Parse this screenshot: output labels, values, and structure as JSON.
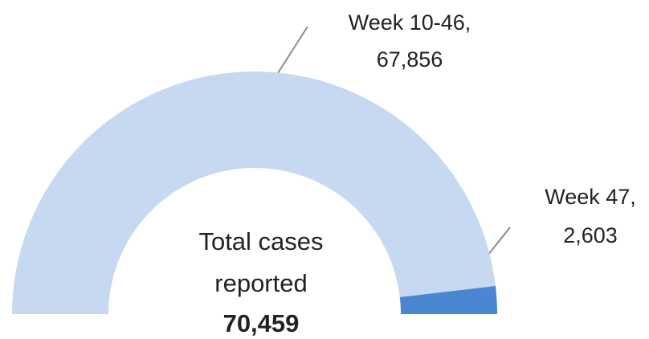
{
  "chart_data": {
    "type": "half-donut",
    "categories": [
      "Week 10-46,",
      "Week 47,"
    ],
    "values": [
      67856,
      2603
    ],
    "value_labels": [
      "67,856",
      "2,603"
    ],
    "colors": [
      "#c6d9f1",
      "#4a86d1"
    ],
    "center_text": [
      "Total cases",
      "reported"
    ],
    "center_value": "70,459"
  }
}
